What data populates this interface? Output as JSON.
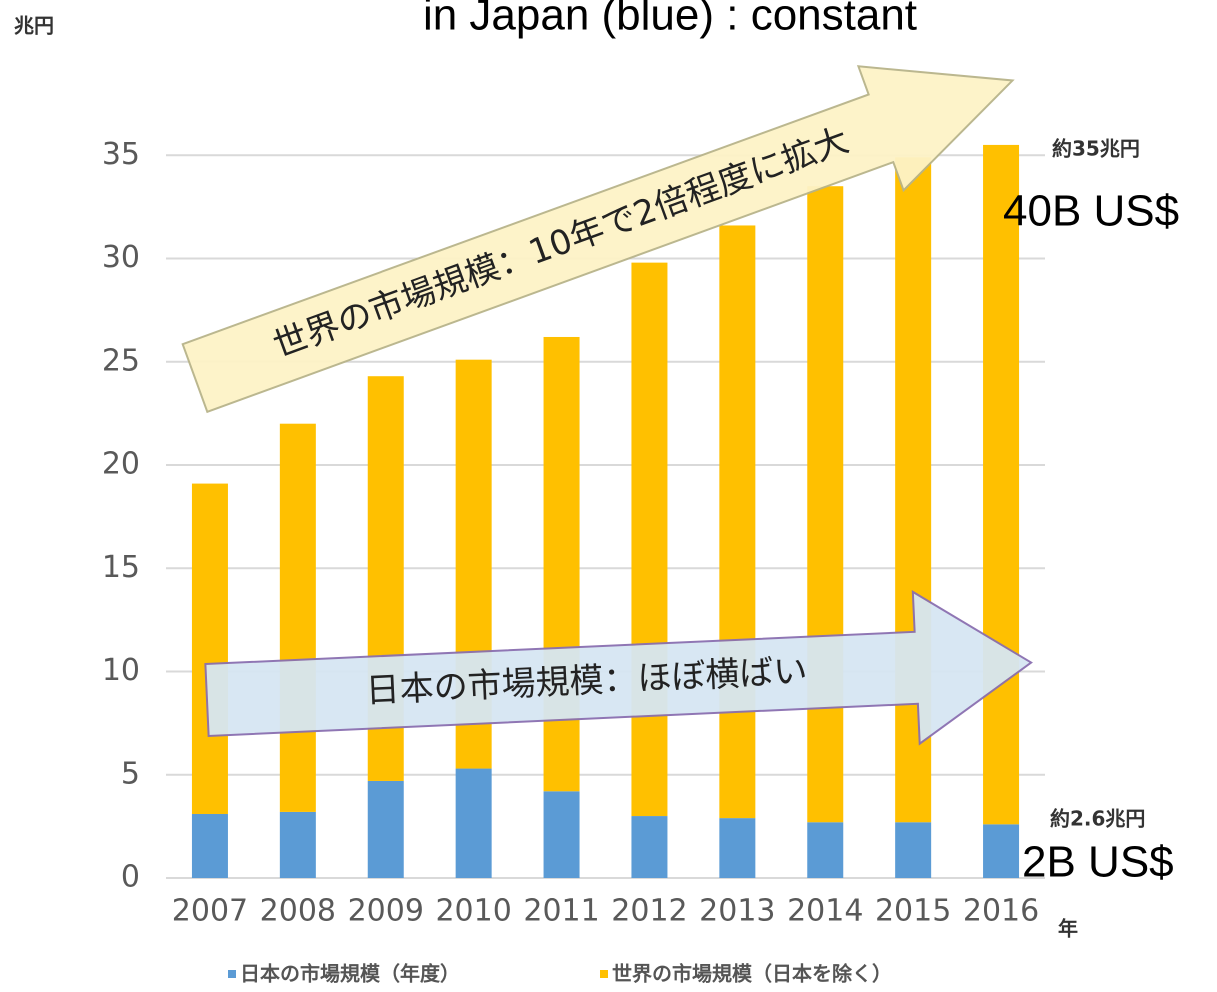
{
  "chart_data": {
    "type": "stacked_bar",
    "title": "in Japan (blue) : constant",
    "y_label": "兆円",
    "x_label": "年",
    "categories": [
      "2007",
      "2008",
      "2009",
      "2010",
      "2011",
      "2012",
      "2013",
      "2014",
      "2015",
      "2016"
    ],
    "series": [
      {
        "name": "日本の市場規模（年度）",
        "color": "#5b9bd5",
        "values": [
          3.1,
          3.2,
          4.7,
          5.3,
          4.2,
          3.0,
          2.9,
          2.7,
          2.7,
          2.6
        ]
      },
      {
        "name": "世界の市場規模（日本を除く）",
        "color": "#ffc000",
        "values": [
          16.0,
          18.8,
          19.6,
          19.8,
          22.0,
          26.8,
          28.7,
          30.8,
          32.2,
          32.9
        ]
      }
    ],
    "ylim": [
      0,
      40
    ],
    "yticks": [
      0,
      5,
      10,
      15,
      20,
      25,
      30,
      35
    ],
    "grid": true,
    "annotations": [
      "約35兆円",
      "40B US$",
      "約2.6兆円",
      "2B US$",
      "世界の市場規模：10年で2倍程度に拡大",
      "日本の市場規模：ほぼ横ばい"
    ]
  }
}
